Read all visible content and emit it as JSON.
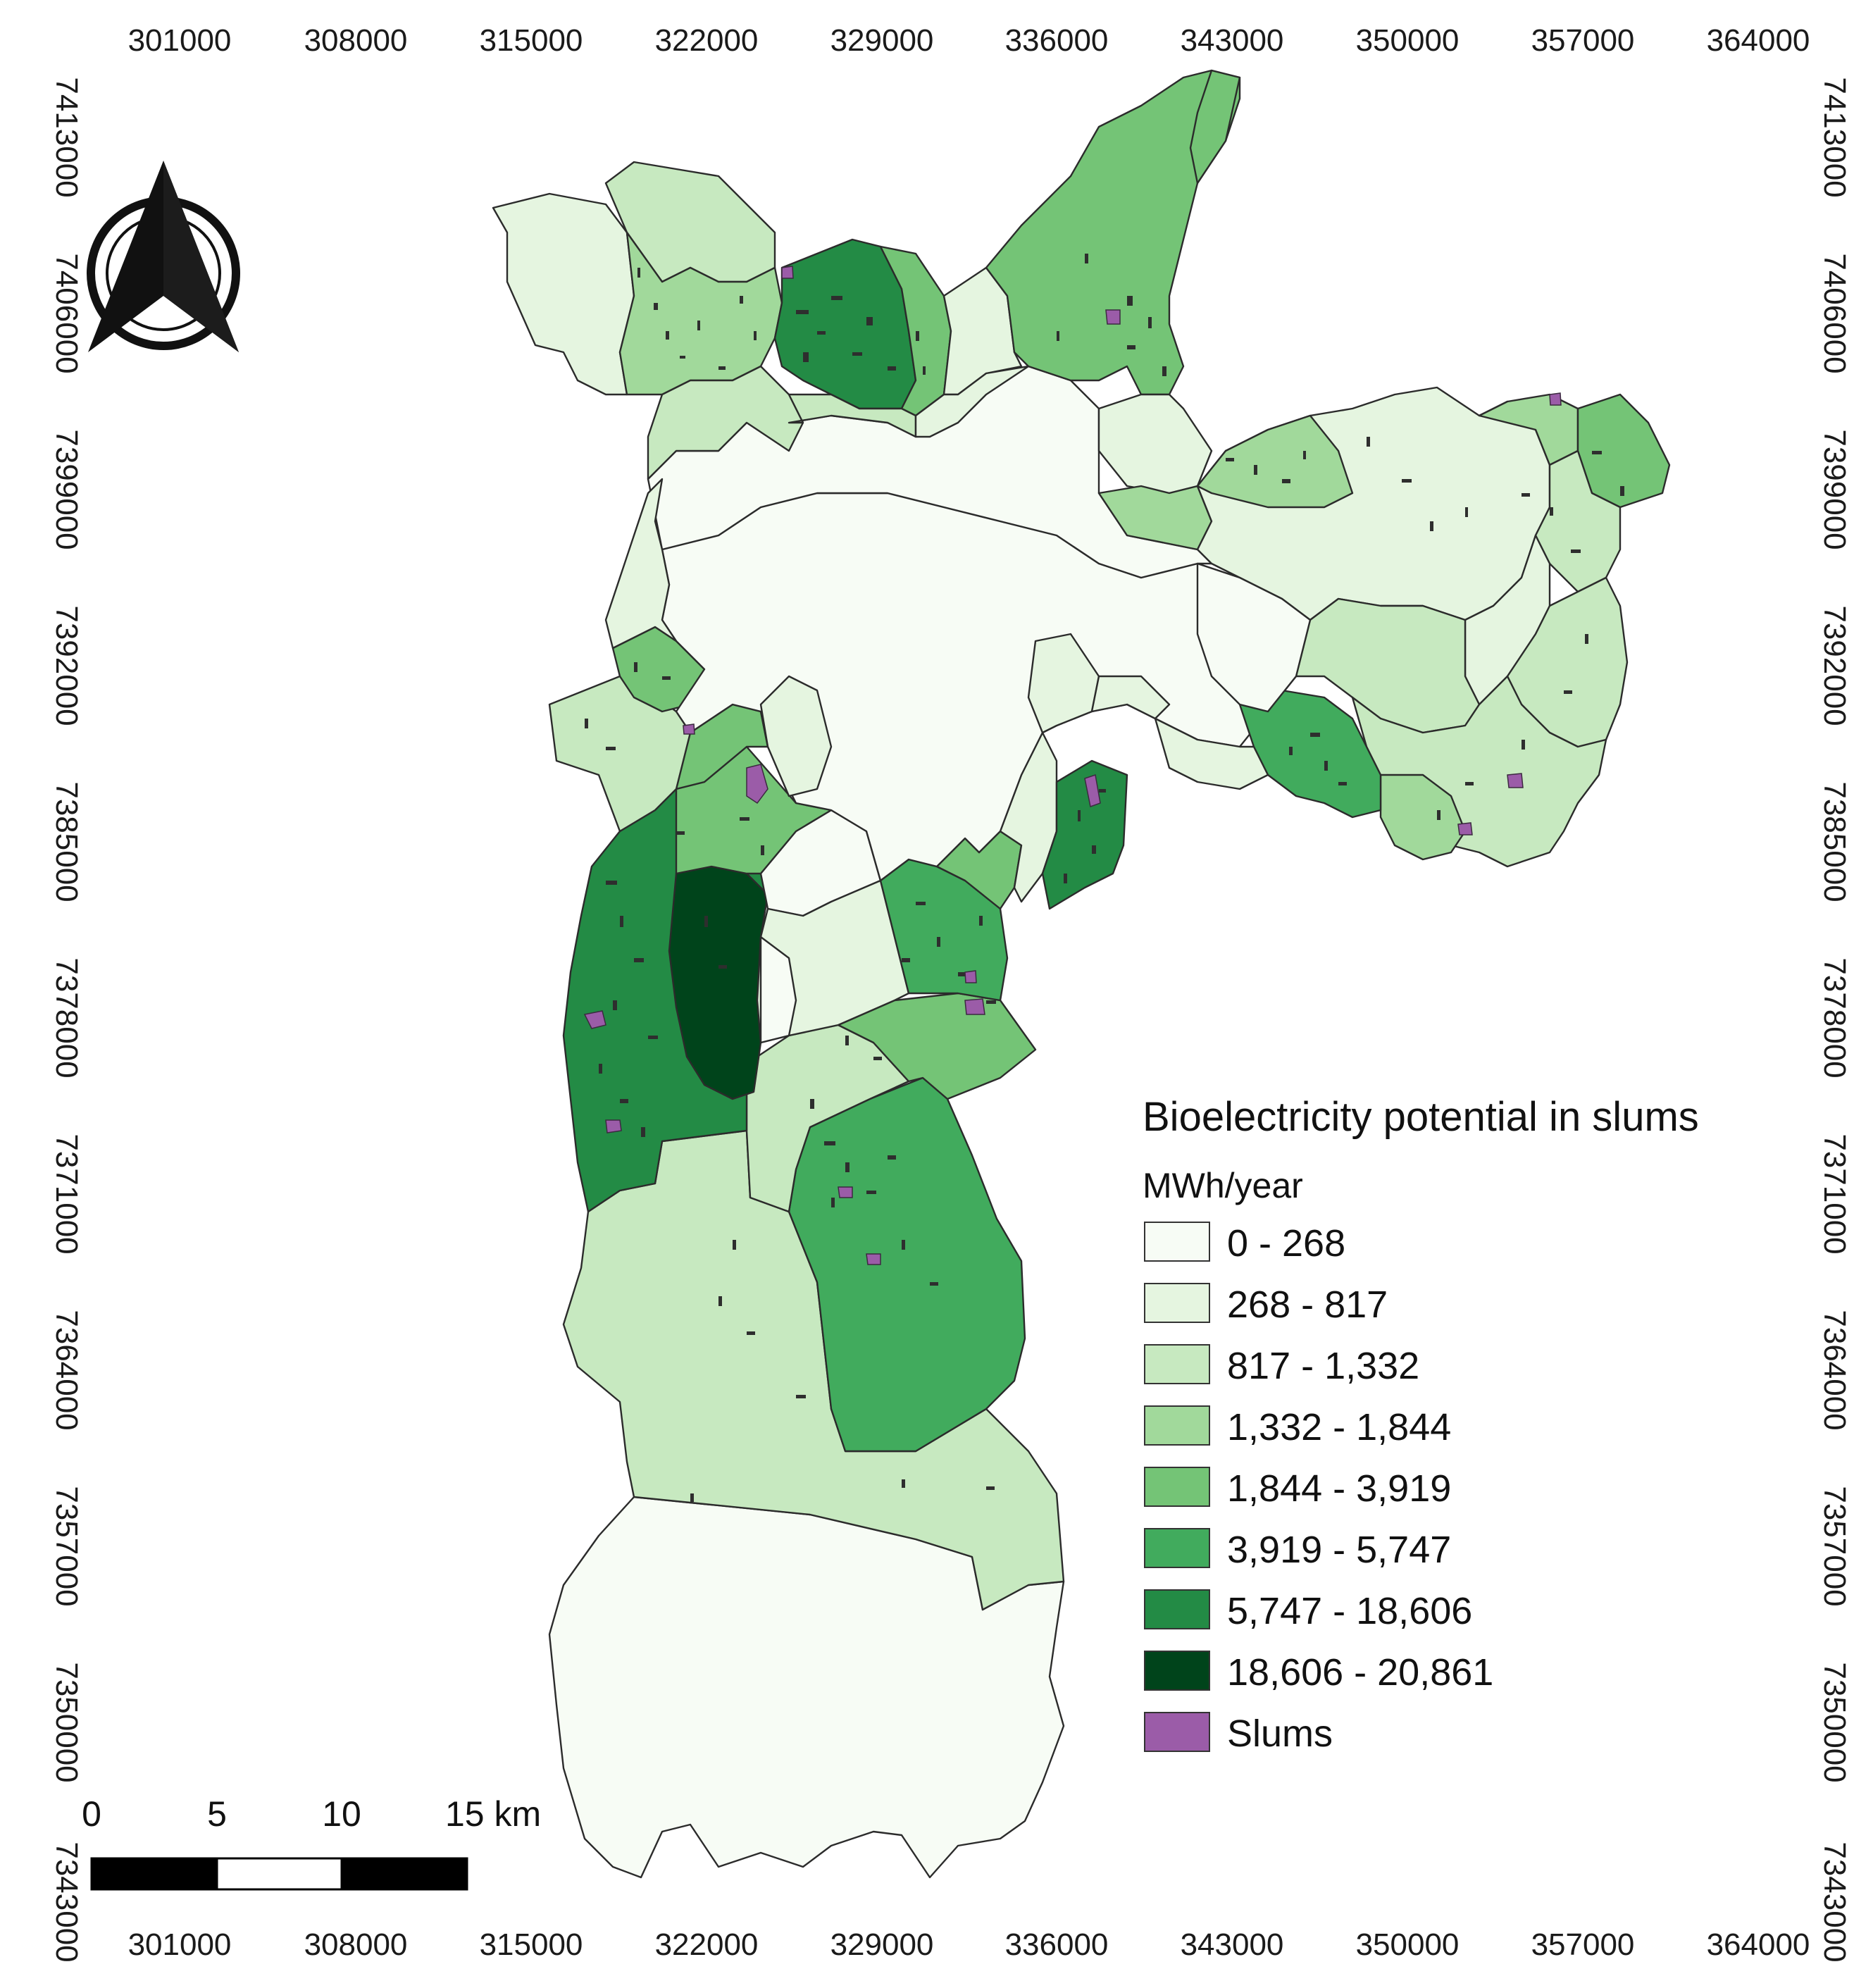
{
  "map": {
    "x_ticks": [
      "301000",
      "308000",
      "315000",
      "322000",
      "329000",
      "336000",
      "343000",
      "350000",
      "357000",
      "364000"
    ],
    "y_ticks": [
      "7413000",
      "7406000",
      "7399000",
      "7392000",
      "7385000",
      "7378000",
      "7371000",
      "7364000",
      "7357000",
      "7350000",
      "7343000"
    ]
  },
  "legend": {
    "title": "Bioelectricity potential in slums",
    "unit": "MWh/year",
    "classes": [
      {
        "label": "0 - 268",
        "color": "#f7fcf5"
      },
      {
        "label": "268 - 817",
        "color": "#e5f5e0"
      },
      {
        "label": "817 - 1,332",
        "color": "#c7e9c0"
      },
      {
        "label": "1,332 - 1,844",
        "color": "#a1d99b"
      },
      {
        "label": "1,844 - 3,919",
        "color": "#74c476"
      },
      {
        "label": "3,919 - 5,747",
        "color": "#41ab5d"
      },
      {
        "label": "5,747 - 18,606",
        "color": "#238b45"
      },
      {
        "label": "18,606 - 20,861",
        "color": "#00441b"
      },
      {
        "label": "Slums",
        "color": "#9b5ca8"
      }
    ]
  },
  "scale_bar": {
    "labels": [
      "0",
      "5",
      "10",
      "15 km"
    ]
  },
  "north_arrow": {
    "icon": "north-arrow-icon"
  }
}
